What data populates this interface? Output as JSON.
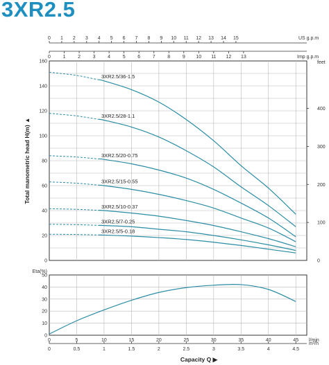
{
  "title": "3XR2.5",
  "colors": {
    "title": "#1f8fc0",
    "curve": "#2a8ca5",
    "grid": "#b8b8b8",
    "axis": "#333333"
  },
  "chart_data": [
    {
      "type": "line",
      "name": "head-chart",
      "ylabel": "Total manometric head H(m)",
      "right_unit": "feet",
      "top_axis_1_unit": "US g.p.m",
      "top_axis_2_unit": "Imp g.p.m",
      "xlim": [
        0,
        4.7
      ],
      "ylim": [
        0,
        160
      ],
      "y_ticks": [
        0,
        20,
        40,
        60,
        80,
        100,
        120,
        140,
        160
      ],
      "right_ticks": [
        0,
        100,
        200,
        300,
        400
      ],
      "us_gpm_ticks": [
        0,
        1,
        2,
        3,
        4,
        5,
        6,
        7,
        8,
        9,
        10,
        11,
        12,
        13,
        14,
        15
      ],
      "imp_gpm_ticks": [
        0,
        1,
        2,
        3,
        4,
        5,
        6,
        7,
        8,
        9,
        10,
        11,
        12,
        13
      ],
      "series": [
        {
          "name": "3XR2.5/36-1.5",
          "dashed_until": 0.9,
          "x": [
            0,
            0.5,
            1.0,
            1.5,
            2.0,
            2.5,
            3.0,
            3.5,
            4.0,
            4.5
          ],
          "y": [
            151,
            148.5,
            144,
            137,
            127,
            113,
            96,
            76,
            58,
            37
          ]
        },
        {
          "name": "3XR2.5/28-1.1",
          "dashed_until": 0.9,
          "x": [
            0,
            0.5,
            1.0,
            1.5,
            2.0,
            2.5,
            3.0,
            3.5,
            4.0,
            4.5
          ],
          "y": [
            118,
            116,
            112.5,
            107,
            99,
            88,
            75,
            59,
            44,
            27
          ]
        },
        {
          "name": "3XR2.5/20-0.75",
          "dashed_until": 0.9,
          "x": [
            0,
            0.5,
            1.0,
            1.5,
            2.0,
            2.5,
            3.0,
            3.5,
            4.0,
            4.5
          ],
          "y": [
            84,
            83,
            81,
            77.5,
            72.5,
            66,
            57,
            46,
            34,
            19
          ]
        },
        {
          "name": "3XR2.5/15-0.55",
          "dashed_until": 0.9,
          "x": [
            0,
            0.5,
            1.0,
            1.5,
            2.0,
            2.5,
            3.0,
            3.5,
            4.0,
            4.5
          ],
          "y": [
            63,
            62,
            60,
            57,
            53,
            48,
            42,
            34,
            26,
            15
          ]
        },
        {
          "name": "3XR2.5/10-0.37",
          "dashed_until": 0.9,
          "x": [
            0,
            0.5,
            1.0,
            1.5,
            2.0,
            2.5,
            3.0,
            3.5,
            4.0,
            4.5
          ],
          "y": [
            41.5,
            41,
            40,
            38,
            35.5,
            32,
            28,
            23,
            17.5,
            11
          ]
        },
        {
          "name": "3XR2.5/7-0.25",
          "dashed_until": 0.9,
          "x": [
            0,
            0.5,
            1.0,
            1.5,
            2.0,
            2.5,
            3.0,
            3.5,
            4.0,
            4.5
          ],
          "y": [
            29,
            28.7,
            28,
            27,
            25,
            23,
            20,
            16.5,
            12.5,
            8
          ]
        },
        {
          "name": "3XR2.5/5-0.18",
          "dashed_until": 0.9,
          "x": [
            0,
            0.5,
            1.0,
            1.5,
            2.0,
            2.5,
            3.0,
            3.5,
            4.0,
            4.5
          ],
          "y": [
            21,
            20.8,
            20.3,
            19.5,
            18.3,
            16.8,
            14.6,
            12,
            9,
            6
          ]
        }
      ]
    },
    {
      "type": "line",
      "name": "efficiency-chart",
      "ylabel": "Eta(%)",
      "xlabel": "Capacity Q",
      "xlim": [
        0,
        4.7
      ],
      "ylim": [
        0,
        50
      ],
      "y_ticks": [
        0,
        10,
        20,
        30,
        40,
        50
      ],
      "m3h_ticks": [
        "0",
        "0.5",
        "1",
        "1.5",
        "2",
        "2.5",
        "3",
        "3.5",
        "4",
        "4.5"
      ],
      "m3h_unit": "m³/h",
      "lmin_ticks": [
        "0",
        "5",
        "10",
        "15",
        "20",
        "25",
        "30",
        "35",
        "40",
        "45"
      ],
      "lmin_unit": "l/min",
      "series": [
        {
          "x": [
            0,
            0.5,
            1.0,
            1.5,
            2.0,
            2.5,
            3.0,
            3.5,
            4.0,
            4.5
          ],
          "y": [
            1,
            12,
            21,
            29,
            35.5,
            39.5,
            41.5,
            42,
            38,
            28
          ]
        }
      ]
    }
  ]
}
